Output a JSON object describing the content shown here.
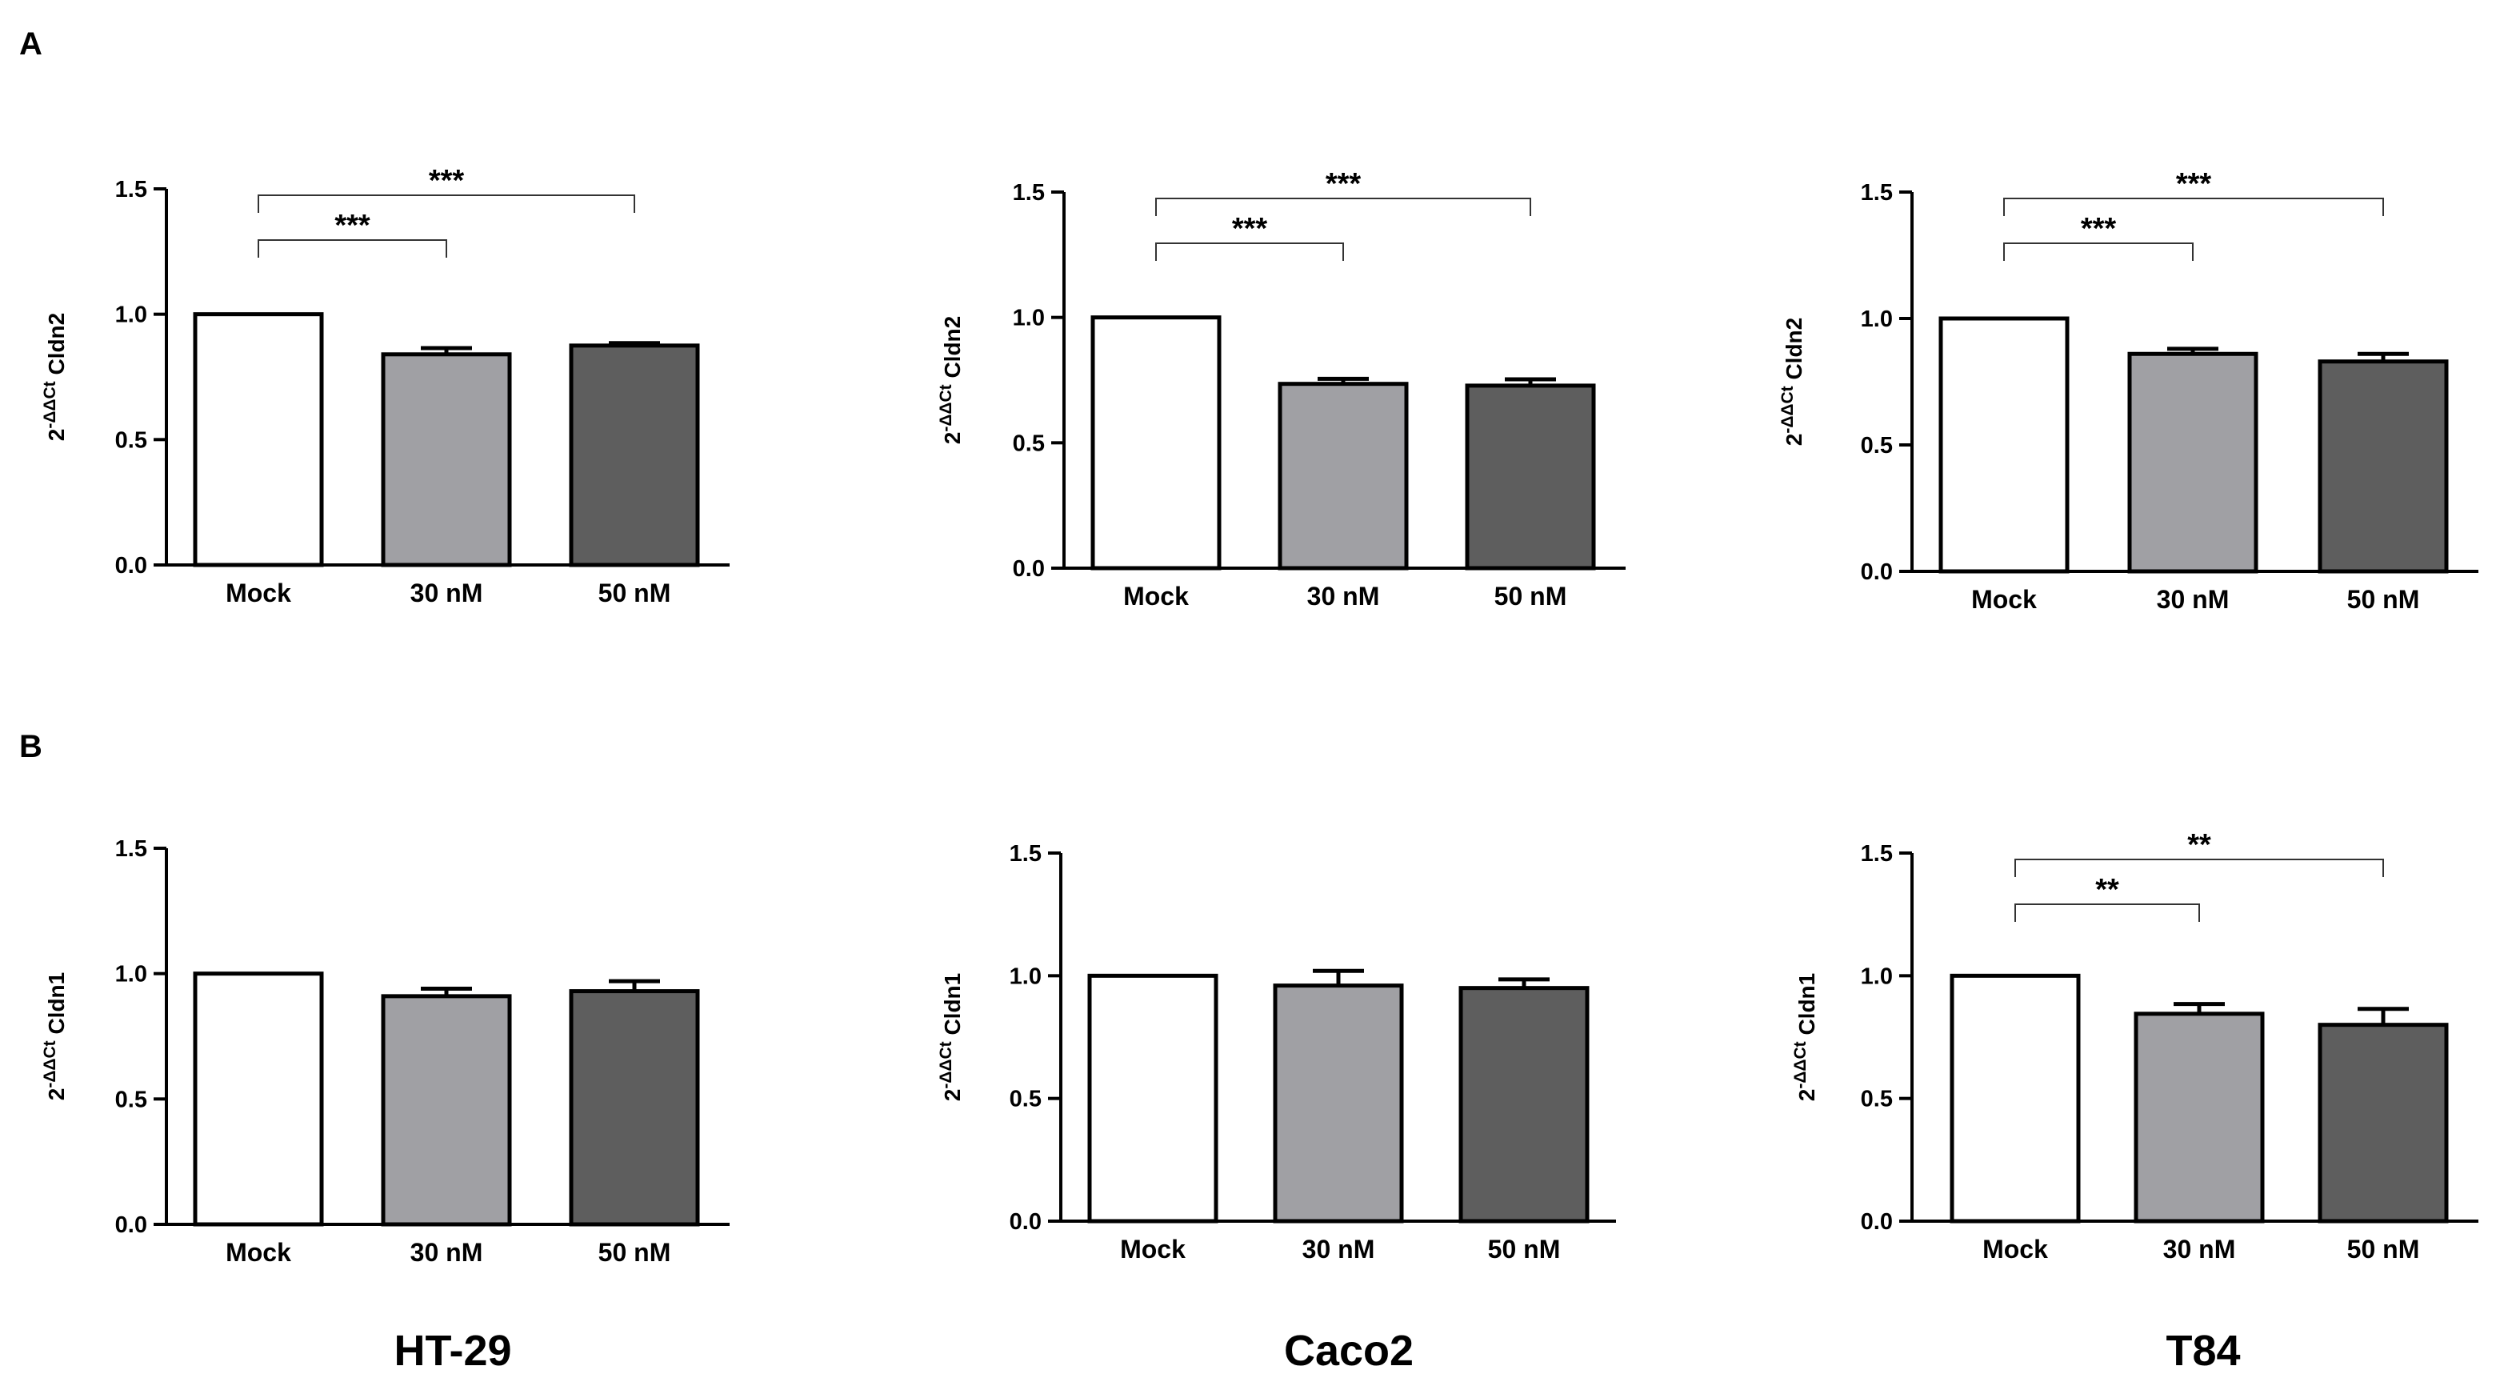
{
  "figure": {
    "panel_labels": [
      "A",
      "B"
    ],
    "cell_lines": [
      "HT-29",
      "Caco2",
      "T84"
    ],
    "colors": {
      "mock": "#ffffff",
      "nm30": "#a0a0a4",
      "nm50": "#5e5e5e",
      "axis": "#000000"
    }
  },
  "chart_data": [
    {
      "id": "A-HT29",
      "type": "bar",
      "panel": "A",
      "cell_line": "HT-29",
      "ylabel": "2-ΔΔCt Cldn2",
      "categories": [
        "Mock",
        "30 nM",
        "50 nM"
      ],
      "values": [
        1.0,
        0.84,
        0.875
      ],
      "errors": [
        0.0,
        0.025,
        0.01
      ],
      "ylim": [
        0,
        1.5
      ],
      "yticks": [
        "0.0",
        "0.5",
        "1.0",
        "1.5"
      ],
      "significance": [
        {
          "from": 0,
          "to": 1,
          "label": "***"
        },
        {
          "from": 0,
          "to": 2,
          "label": "***"
        }
      ]
    },
    {
      "id": "A-Caco2",
      "type": "bar",
      "panel": "A",
      "cell_line": "Caco2",
      "ylabel": "2-ΔΔCt Cldn2",
      "categories": [
        "Mock",
        "30 nM",
        "50 nM"
      ],
      "values": [
        1.0,
        0.735,
        0.728
      ],
      "errors": [
        0.0,
        0.02,
        0.025
      ],
      "ylim": [
        0,
        1.5
      ],
      "yticks": [
        "0.0",
        "0.5",
        "1.0",
        "1.5"
      ],
      "significance": [
        {
          "from": 0,
          "to": 1,
          "label": "***"
        },
        {
          "from": 0,
          "to": 2,
          "label": "***"
        }
      ]
    },
    {
      "id": "A-T84",
      "type": "bar",
      "panel": "A",
      "cell_line": "T84",
      "ylabel": "2-ΔΔCt Cldn2",
      "categories": [
        "Mock",
        "30 nM",
        "50 nM"
      ],
      "values": [
        1.0,
        0.86,
        0.83
      ],
      "errors": [
        0.0,
        0.02,
        0.03
      ],
      "ylim": [
        0,
        1.5
      ],
      "yticks": [
        "0.0",
        "0.5",
        "1.0",
        "1.5"
      ],
      "significance": [
        {
          "from": 0,
          "to": 1,
          "label": "***"
        },
        {
          "from": 0,
          "to": 2,
          "label": "***"
        }
      ]
    },
    {
      "id": "B-HT29",
      "type": "bar",
      "panel": "B",
      "cell_line": "HT-29",
      "ylabel": "2-ΔΔCt Cldn1",
      "categories": [
        "Mock",
        "30 nM",
        "50 nM"
      ],
      "values": [
        1.0,
        0.91,
        0.93
      ],
      "errors": [
        0.0,
        0.03,
        0.04
      ],
      "ylim": [
        0,
        1.5
      ],
      "yticks": [
        "0.0",
        "0.5",
        "1.0",
        "1.5"
      ],
      "significance": []
    },
    {
      "id": "B-Caco2",
      "type": "bar",
      "panel": "B",
      "cell_line": "Caco2",
      "ylabel": "2-ΔΔCt Cldn1",
      "categories": [
        "Mock",
        "30 nM",
        "50 nM"
      ],
      "values": [
        1.0,
        0.96,
        0.95
      ],
      "errors": [
        0.0,
        0.06,
        0.035
      ],
      "ylim": [
        0,
        1.5
      ],
      "yticks": [
        "0.0",
        "0.5",
        "1.0",
        "1.5"
      ],
      "significance": []
    },
    {
      "id": "B-T84",
      "type": "bar",
      "panel": "B",
      "cell_line": "T84",
      "ylabel": "2-ΔΔCt Cldn1",
      "categories": [
        "Mock",
        "30 nM",
        "50 nM"
      ],
      "values": [
        1.0,
        0.845,
        0.8
      ],
      "errors": [
        0.0,
        0.04,
        0.065
      ],
      "ylim": [
        0,
        1.5
      ],
      "yticks": [
        "0.0",
        "0.5",
        "1.0",
        "1.5"
      ],
      "significance": [
        {
          "from": 0,
          "to": 1,
          "label": "**"
        },
        {
          "from": 0,
          "to": 2,
          "label": "**"
        }
      ]
    }
  ]
}
